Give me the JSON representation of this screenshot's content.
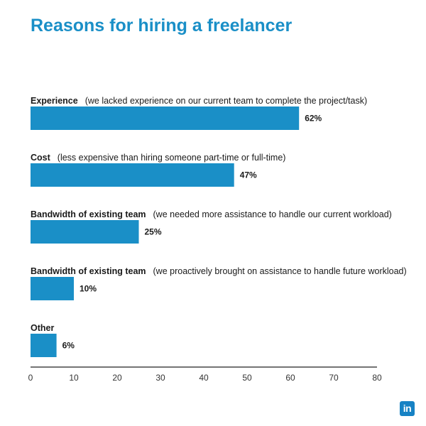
{
  "title": "Reasons for hiring a freelancer",
  "colors": {
    "title": "#1a8fc7",
    "bar": "#1a8fc7",
    "logo": "#1782c4"
  },
  "logo_icon": "linkedin-icon",
  "logo_text": "in",
  "chart_data": {
    "type": "bar",
    "orientation": "horizontal",
    "categories": [
      {
        "name": "Experience",
        "detail": "(we lacked experience on our current team to complete the project/task)"
      },
      {
        "name": "Cost",
        "detail": "(less expensive than hiring someone part-time or full-time)"
      },
      {
        "name": "Bandwidth of existing team",
        "detail": "(we needed more assistance to handle our current workload)"
      },
      {
        "name": "Bandwidth of existing team",
        "detail": "(we proactively brought on assistance to handle future workload)"
      },
      {
        "name": "Other",
        "detail": ""
      }
    ],
    "values": [
      62,
      47,
      25,
      10,
      6
    ],
    "value_labels": [
      "62%",
      "47%",
      "25%",
      "10%",
      "6%"
    ],
    "xlim": [
      0,
      80
    ],
    "xticks": [
      "0",
      "10",
      "20",
      "30",
      "40",
      "50",
      "60",
      "70",
      "80"
    ],
    "grid": false
  }
}
